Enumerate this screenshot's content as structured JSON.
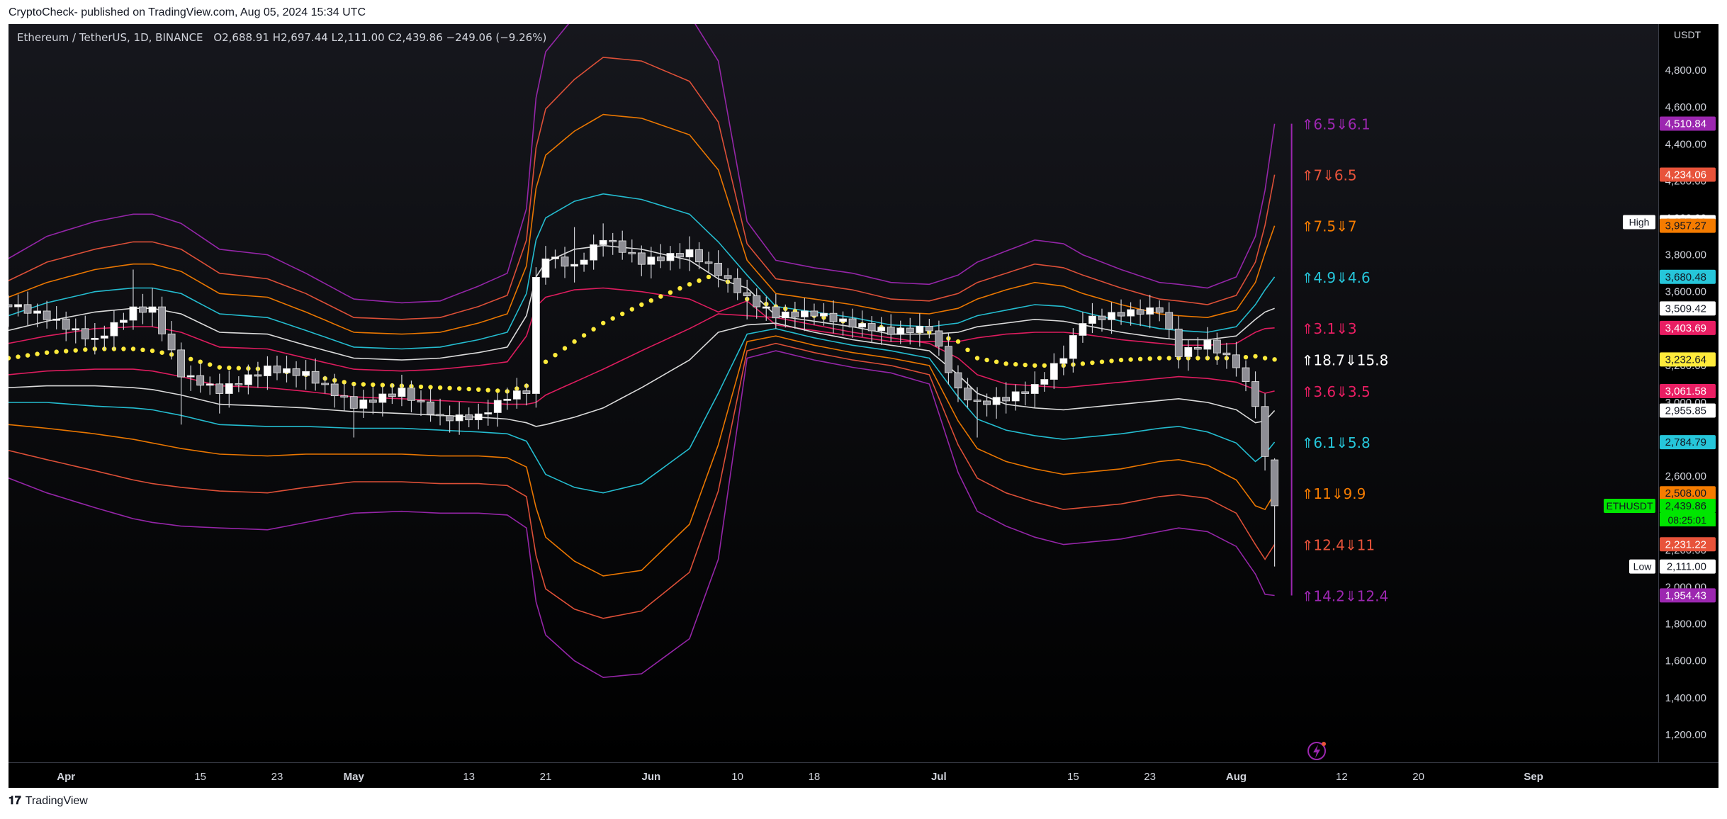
{
  "header": {
    "published": "CryptoCheck- published on TradingView.com, Aug 05, 2024 15:34 UTC"
  },
  "legend": {
    "symbol": "Ethereum / TetherUS, 1D, BINANCE",
    "open": "O2,688.91",
    "high": "H2,697.44",
    "low": "L2,111.00",
    "close": "C2,439.86",
    "change": "−249.06 (−9.26%)"
  },
  "footer": {
    "logo_text": "TradingView"
  },
  "chart_data": {
    "type": "line",
    "currency_label": "USDT",
    "ylim": [
      1050,
      5050
    ],
    "y_ticks": [
      "1,200.00",
      "1,400.00",
      "1,600.00",
      "1,800.00",
      "2,000.00",
      "2,200.00",
      "2,400.00",
      "2,600.00",
      "2,800.00",
      "3,000.00",
      "3,200.00",
      "3,400.00",
      "3,600.00",
      "3,800.00",
      "4,000.00",
      "4,200.00",
      "4,400.00",
      "4,600.00",
      "4,800.00"
    ],
    "y_tick_values": [
      1200,
      1400,
      1600,
      1800,
      2000,
      2200,
      2400,
      2600,
      2800,
      3000,
      3200,
      3400,
      3600,
      3800,
      4000,
      4200,
      4400,
      4600,
      4800
    ],
    "x_range": [
      "2024-03-26",
      "2024-09-14"
    ],
    "x_ticks": [
      {
        "label": "Apr",
        "date": "2024-04-01",
        "bold": true
      },
      {
        "label": "15",
        "date": "2024-04-15"
      },
      {
        "label": "23",
        "date": "2024-04-23"
      },
      {
        "label": "May",
        "date": "2024-05-01",
        "bold": true
      },
      {
        "label": "13",
        "date": "2024-05-13"
      },
      {
        "label": "21",
        "date": "2024-05-21"
      },
      {
        "label": "Jun",
        "date": "2024-06-01",
        "bold": true
      },
      {
        "label": "10",
        "date": "2024-06-10"
      },
      {
        "label": "18",
        "date": "2024-06-18"
      },
      {
        "label": "Jul",
        "date": "2024-07-01",
        "bold": true
      },
      {
        "label": "15",
        "date": "2024-07-15"
      },
      {
        "label": "23",
        "date": "2024-07-23"
      },
      {
        "label": "Aug",
        "date": "2024-08-01",
        "bold": true
      },
      {
        "label": "12",
        "date": "2024-08-12"
      },
      {
        "label": "20",
        "date": "2024-08-20"
      },
      {
        "label": "Sep",
        "date": "2024-09-01",
        "bold": true
      }
    ],
    "price_path": {
      "dates": [
        "2024-03-26",
        "2024-03-30",
        "2024-04-04",
        "2024-04-08",
        "2024-04-10",
        "2024-04-13",
        "2024-04-17",
        "2024-04-22",
        "2024-04-26",
        "2024-05-01",
        "2024-05-06",
        "2024-05-10",
        "2024-05-14",
        "2024-05-17",
        "2024-05-19",
        "2024-05-20",
        "2024-05-21",
        "2024-05-24",
        "2024-05-27",
        "2024-05-31",
        "2024-06-05",
        "2024-06-08",
        "2024-06-11",
        "2024-06-14",
        "2024-06-18",
        "2024-06-22",
        "2024-06-26",
        "2024-06-30",
        "2024-07-03",
        "2024-07-05",
        "2024-07-08",
        "2024-07-11",
        "2024-07-14",
        "2024-07-16",
        "2024-07-20",
        "2024-07-24",
        "2024-07-26",
        "2024-07-29",
        "2024-08-01",
        "2024-08-03",
        "2024-08-04",
        "2024-08-05"
      ],
      "closes": [
        3530,
        3460,
        3330,
        3500,
        3500,
        3150,
        3060,
        3180,
        3150,
        2980,
        3060,
        2910,
        2920,
        3030,
        3060,
        3660,
        3790,
        3730,
        3890,
        3760,
        3810,
        3700,
        3560,
        3470,
        3480,
        3420,
        3380,
        3400,
        3060,
        2990,
        3020,
        3080,
        3250,
        3440,
        3480,
        3500,
        3260,
        3320,
        3200,
        2990,
        2689,
        2440
      ],
      "wicks": [
        [
          3580,
          3410
        ],
        [
          3540,
          3400
        ],
        [
          3430,
          3260
        ],
        [
          3720,
          3410
        ],
        [
          3620,
          3420
        ],
        [
          3320,
          2880
        ],
        [
          3130,
          2940
        ],
        [
          3250,
          3090
        ],
        [
          3230,
          3070
        ],
        [
          3100,
          2810
        ],
        [
          3150,
          3000
        ],
        [
          3020,
          2880
        ],
        [
          2990,
          2860
        ],
        [
          3080,
          2960
        ],
        [
          3100,
          3000
        ],
        [
          3700,
          3050
        ],
        [
          3830,
          3660
        ],
        [
          3950,
          3650
        ],
        [
          3970,
          3790
        ],
        [
          3850,
          3730
        ],
        [
          3900,
          3730
        ],
        [
          3790,
          3650
        ],
        [
          3600,
          3450
        ],
        [
          3550,
          3400
        ],
        [
          3530,
          3420
        ],
        [
          3480,
          3350
        ],
        [
          3450,
          3350
        ],
        [
          3440,
          3360
        ],
        [
          3140,
          3030
        ],
        [
          3060,
          2810
        ],
        [
          3110,
          2940
        ],
        [
          3140,
          3020
        ],
        [
          3280,
          3170
        ],
        [
          3490,
          3380
        ],
        [
          3520,
          3420
        ],
        [
          3540,
          3440
        ],
        [
          3320,
          3200
        ],
        [
          3360,
          3260
        ],
        [
          3260,
          3140
        ],
        [
          3060,
          2950
        ],
        [
          2990,
          2680
        ],
        [
          2697,
          2111
        ]
      ]
    },
    "series": [
      {
        "id": "purple-upper",
        "color": "#9c27b0",
        "values": [
          3780,
          3900,
          3980,
          4020,
          4020,
          3970,
          3830,
          3800,
          3700,
          3560,
          3540,
          3550,
          3630,
          3700,
          4050,
          4650,
          4900,
          5090,
          5250,
          5230,
          5100,
          4850,
          3980,
          3770,
          3730,
          3700,
          3650,
          3640,
          3690,
          3760,
          3820,
          3880,
          3860,
          3800,
          3720,
          3650,
          3640,
          3620,
          3680,
          3900,
          4150,
          4510
        ]
      },
      {
        "id": "red-upper",
        "color": "#e8533a",
        "values": [
          3660,
          3760,
          3830,
          3870,
          3870,
          3830,
          3700,
          3670,
          3590,
          3460,
          3450,
          3460,
          3520,
          3580,
          3880,
          4380,
          4590,
          4750,
          4870,
          4850,
          4740,
          4520,
          3860,
          3670,
          3640,
          3610,
          3560,
          3550,
          3590,
          3650,
          3700,
          3750,
          3730,
          3690,
          3620,
          3560,
          3550,
          3530,
          3580,
          3760,
          3960,
          4234
        ]
      },
      {
        "id": "orange-upper",
        "color": "#f57c00",
        "values": [
          3570,
          3650,
          3720,
          3750,
          3750,
          3710,
          3590,
          3570,
          3490,
          3380,
          3370,
          3380,
          3430,
          3480,
          3740,
          4160,
          4340,
          4470,
          4560,
          4540,
          4450,
          4260,
          3770,
          3590,
          3560,
          3530,
          3490,
          3480,
          3510,
          3560,
          3610,
          3650,
          3630,
          3590,
          3530,
          3480,
          3470,
          3460,
          3500,
          3650,
          3810,
          3957
        ]
      },
      {
        "id": "cyan-upper",
        "color": "#26c6da",
        "values": [
          3470,
          3540,
          3600,
          3620,
          3620,
          3590,
          3480,
          3460,
          3390,
          3300,
          3290,
          3300,
          3340,
          3380,
          3590,
          3880,
          4000,
          4090,
          4130,
          4100,
          4020,
          3870,
          3690,
          3520,
          3490,
          3460,
          3420,
          3410,
          3430,
          3470,
          3500,
          3530,
          3520,
          3490,
          3440,
          3400,
          3390,
          3380,
          3410,
          3530,
          3610,
          3680
        ]
      },
      {
        "id": "white-upper",
        "color": "#e6e6e6",
        "values": [
          3390,
          3440,
          3490,
          3510,
          3510,
          3480,
          3380,
          3370,
          3310,
          3240,
          3230,
          3240,
          3270,
          3300,
          3470,
          3680,
          3760,
          3830,
          3850,
          3830,
          3770,
          3670,
          3620,
          3470,
          3440,
          3410,
          3370,
          3370,
          3380,
          3410,
          3430,
          3450,
          3440,
          3420,
          3380,
          3350,
          3340,
          3340,
          3360,
          3450,
          3490,
          3510
        ]
      },
      {
        "id": "pink-upper",
        "color": "#e91e63",
        "values": [
          3320,
          3360,
          3400,
          3410,
          3410,
          3380,
          3300,
          3290,
          3240,
          3180,
          3170,
          3180,
          3200,
          3220,
          3360,
          3520,
          3570,
          3610,
          3620,
          3600,
          3560,
          3490,
          3550,
          3420,
          3390,
          3360,
          3330,
          3330,
          3330,
          3350,
          3370,
          3380,
          3380,
          3370,
          3340,
          3320,
          3310,
          3310,
          3320,
          3380,
          3400,
          3404
        ]
      },
      {
        "id": "yellow-dotted",
        "color": "#ffeb3b",
        "dotted": true,
        "values": [
          3240,
          3270,
          3290,
          3290,
          3280,
          3250,
          3190,
          3180,
          3150,
          3100,
          3090,
          3080,
          3070,
          3060,
          3090,
          3150,
          3220,
          3330,
          3430,
          3530,
          3640,
          3700,
          3560,
          3520,
          3470,
          3430,
          3400,
          3380,
          3330,
          3240,
          3210,
          3200,
          3200,
          3210,
          3230,
          3240,
          3240,
          3240,
          3240,
          3250,
          3240,
          3233
        ]
      },
      {
        "id": "pink-lower",
        "color": "#e91e63",
        "values": [
          3150,
          3170,
          3180,
          3180,
          3170,
          3140,
          3090,
          3080,
          3060,
          3030,
          3020,
          3010,
          3000,
          2990,
          2990,
          3000,
          3040,
          3110,
          3180,
          3280,
          3400,
          3480,
          3470,
          3460,
          3420,
          3380,
          3350,
          3320,
          3240,
          3150,
          3100,
          3090,
          3080,
          3090,
          3110,
          3130,
          3140,
          3130,
          3110,
          3070,
          3050,
          3062
        ]
      },
      {
        "id": "white-lower",
        "color": "#e6e6e6",
        "values": [
          3080,
          3090,
          3090,
          3080,
          3070,
          3040,
          2990,
          2980,
          2970,
          2950,
          2940,
          2930,
          2920,
          2910,
          2890,
          2870,
          2880,
          2920,
          2970,
          3080,
          3230,
          3380,
          3420,
          3430,
          3380,
          3340,
          3310,
          3280,
          3150,
          3050,
          2990,
          2970,
          2960,
          2970,
          2990,
          3010,
          3020,
          3000,
          2960,
          2890,
          2900,
          2956
        ]
      },
      {
        "id": "cyan-lower",
        "color": "#26c6da",
        "values": [
          3000,
          3000,
          2980,
          2970,
          2960,
          2930,
          2880,
          2870,
          2870,
          2860,
          2860,
          2850,
          2840,
          2830,
          2790,
          2700,
          2610,
          2540,
          2510,
          2560,
          2750,
          3050,
          3370,
          3400,
          3350,
          3310,
          3280,
          3240,
          3030,
          2910,
          2850,
          2820,
          2800,
          2810,
          2830,
          2860,
          2870,
          2840,
          2780,
          2680,
          2720,
          2785
        ]
      },
      {
        "id": "orange-lower",
        "color": "#f57c00",
        "values": [
          2880,
          2860,
          2830,
          2800,
          2780,
          2750,
          2720,
          2710,
          2720,
          2720,
          2720,
          2710,
          2710,
          2700,
          2650,
          2430,
          2270,
          2140,
          2060,
          2090,
          2340,
          2770,
          3330,
          3360,
          3310,
          3270,
          3240,
          3200,
          2900,
          2750,
          2680,
          2640,
          2610,
          2620,
          2640,
          2680,
          2690,
          2660,
          2580,
          2440,
          2420,
          2508
        ]
      },
      {
        "id": "red-lower",
        "color": "#e8533a",
        "values": [
          2740,
          2690,
          2630,
          2580,
          2560,
          2540,
          2520,
          2510,
          2540,
          2570,
          2570,
          2560,
          2560,
          2550,
          2490,
          2170,
          1990,
          1880,
          1830,
          1870,
          2080,
          2520,
          3280,
          3320,
          3270,
          3230,
          3200,
          3150,
          2770,
          2590,
          2510,
          2460,
          2420,
          2430,
          2450,
          2490,
          2500,
          2480,
          2400,
          2230,
          2150,
          2231
        ]
      },
      {
        "id": "purple-lower",
        "color": "#9c27b0",
        "values": [
          2590,
          2510,
          2430,
          2370,
          2350,
          2330,
          2320,
          2310,
          2350,
          2400,
          2410,
          2400,
          2400,
          2390,
          2320,
          1920,
          1740,
          1600,
          1510,
          1530,
          1720,
          2150,
          3240,
          3280,
          3230,
          3190,
          3160,
          3100,
          2620,
          2410,
          2330,
          2270,
          2230,
          2240,
          2260,
          2300,
          2320,
          2300,
          2220,
          2070,
          1960,
          1954
        ]
      }
    ],
    "right_labels": [
      {
        "text": "⇑6.5⇓6.1",
        "color": "#9c27b0",
        "value": 4510
      },
      {
        "text": "⇑7⇓6.5",
        "color": "#e8533a",
        "value": 4234
      },
      {
        "text": "⇑7.5⇓7",
        "color": "#f57c00",
        "value": 3957
      },
      {
        "text": "⇑4.9⇓4.6",
        "color": "#26c6da",
        "value": 3680
      },
      {
        "text": "⇑3.1⇓3",
        "color": "#e91e63",
        "value": 3404
      },
      {
        "text": "⇑18.7⇓15.8",
        "color": "#ffffff",
        "value": 3233
      },
      {
        "text": "⇑3.6⇓3.5",
        "color": "#e91e63",
        "value": 3062
      },
      {
        "text": "⇑6.1⇓5.8",
        "color": "#26c6da",
        "value": 2785
      },
      {
        "text": "⇑11⇓9.9",
        "color": "#f57c00",
        "value": 2508
      },
      {
        "text": "⇑12.4⇓11",
        "color": "#e8533a",
        "value": 2231
      },
      {
        "text": "⇑14.2⇓12.4",
        "color": "#9c27b0",
        "value": 1954
      }
    ],
    "axis_price_tags": [
      {
        "text": "4,510.84",
        "value": 4510.84,
        "bg": "#9c27b0",
        "fg": "#ffffff"
      },
      {
        "text": "4,234.06",
        "value": 4234.06,
        "bg": "#e8533a",
        "fg": "#ffffff"
      },
      {
        "text": "3,977.00",
        "value": 3977.0,
        "bg": "#ffffff",
        "fg": "#131722",
        "side_label": "High"
      },
      {
        "text": "3,957.27",
        "value": 3957.27,
        "bg": "#f57c00",
        "fg": "#131722"
      },
      {
        "text": "3,680.48",
        "value": 3680.48,
        "bg": "#26c6da",
        "fg": "#131722"
      },
      {
        "text": "3,509.42",
        "value": 3509.42,
        "bg": "#ffffff",
        "fg": "#131722"
      },
      {
        "text": "3,403.69",
        "value": 3403.69,
        "bg": "#e91e63",
        "fg": "#ffffff"
      },
      {
        "text": "3,232.64",
        "value": 3232.64,
        "bg": "#ffeb3b",
        "fg": "#131722"
      },
      {
        "text": "3,061.58",
        "value": 3061.58,
        "bg": "#e91e63",
        "fg": "#ffffff"
      },
      {
        "text": "2,955.85",
        "value": 2955.85,
        "bg": "#ffffff",
        "fg": "#131722"
      },
      {
        "text": "2,784.79",
        "value": 2784.79,
        "bg": "#26c6da",
        "fg": "#131722"
      },
      {
        "text": "2,508.00",
        "value": 2508.0,
        "bg": "#f57c00",
        "fg": "#131722"
      },
      {
        "text": "2,439.86",
        "value": 2439.86,
        "bg": "#00e600",
        "fg": "#131722",
        "side_label": "ETHUSDT",
        "sub": "08:25:01"
      },
      {
        "text": "2,231.22",
        "value": 2231.22,
        "bg": "#e8533a",
        "fg": "#ffffff"
      },
      {
        "text": "2,111.00",
        "value": 2111.0,
        "bg": "#ffffff",
        "fg": "#131722",
        "side_label": "Low"
      },
      {
        "text": "1,954.43",
        "value": 1954.43,
        "bg": "#9c27b0",
        "fg": "#ffffff"
      }
    ],
    "grid": false,
    "colors": {
      "background": "#000000",
      "bull_candle": "#ffffff",
      "bear_candle": "#8d8d94",
      "text": "#d1d4dc"
    }
  }
}
